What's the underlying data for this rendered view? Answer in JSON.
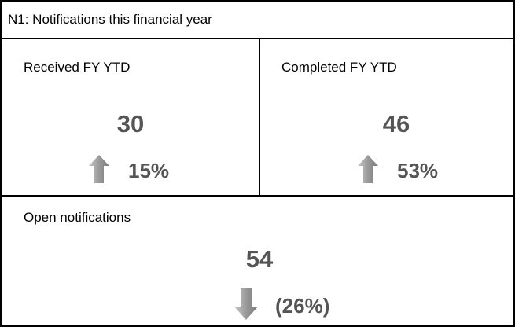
{
  "header": {
    "title": "N1: Notifications this financial year"
  },
  "tiles": [
    {
      "label": "Received FY YTD",
      "value": 30,
      "change": "15%"
    },
    {
      "label": "Completed FY YTD",
      "value": 46,
      "change": "53%"
    },
    {
      "label": "Open notifications",
      "value": 54,
      "change": "(26%)"
    }
  ]
}
